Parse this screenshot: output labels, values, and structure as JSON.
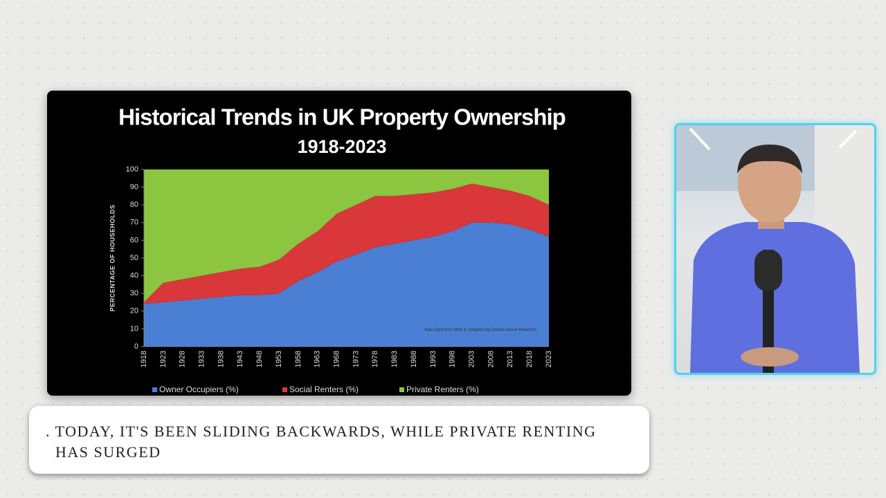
{
  "chart_data": {
    "type": "stacked-area",
    "title": "Historical Trends in UK Property Ownership",
    "subtitle": "1918-2023",
    "y_label": "PERCENTAGE OF HOUSEHOLDS",
    "annotation": "Raw Data from ONS & compiled by Denton House Research",
    "categories": [
      "1918",
      "1923",
      "1928",
      "1933",
      "1938",
      "1943",
      "1948",
      "1953",
      "1958",
      "1963",
      "1968",
      "1973",
      "1978",
      "1983",
      "1988",
      "1993",
      "1998",
      "2003",
      "2008",
      "2013",
      "2018",
      "2023"
    ],
    "series": [
      {
        "name": "Owner Occupiers (%)",
        "color": "#4a7fd4",
        "values": [
          24,
          25,
          26,
          27,
          28,
          29,
          29,
          30,
          37,
          42,
          48,
          52,
          56,
          58,
          60,
          62,
          65,
          70,
          70,
          69,
          66,
          62
        ]
      },
      {
        "name": "Social Renters (%)",
        "color": "#d9373a",
        "values": [
          1,
          11,
          12,
          13,
          14,
          15,
          16,
          19,
          21,
          23,
          27,
          28,
          29,
          27,
          26,
          25,
          24,
          22,
          20,
          19,
          19,
          18
        ]
      },
      {
        "name": "Private Renters (%)",
        "color": "#8cc540",
        "values": [
          75,
          64,
          62,
          60,
          58,
          56,
          55,
          51,
          42,
          35,
          25,
          20,
          15,
          15,
          14,
          13,
          11,
          8,
          10,
          12,
          15,
          20
        ]
      }
    ],
    "ylim": [
      0,
      100
    ],
    "yticks": [
      0,
      10,
      20,
      30,
      40,
      50,
      60,
      70,
      80,
      90,
      100
    ],
    "legend": "bottom"
  },
  "caption": [
    ". today, it's been sliding backwards, while private renting",
    "has surged"
  ]
}
